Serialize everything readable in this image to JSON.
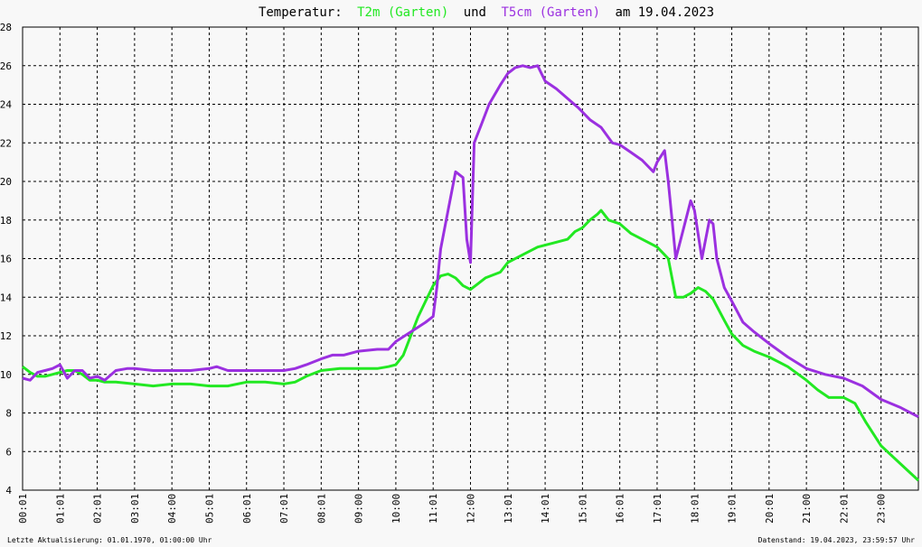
{
  "chart_data": {
    "type": "line",
    "title": {
      "prefix": "Temperatur:",
      "series1": "T2m (Garten)",
      "joiner": "und",
      "series2": "T5cm (Garten)",
      "suffix": "am 19.04.2023"
    },
    "xlabel": "",
    "ylabel": "",
    "ylim": [
      4,
      28
    ],
    "yticks": [
      4,
      6,
      8,
      10,
      12,
      14,
      16,
      18,
      20,
      22,
      24,
      26,
      28
    ],
    "xlim": [
      0,
      24
    ],
    "xticks": [
      0,
      1,
      2,
      3,
      4,
      5,
      6,
      7,
      8,
      9,
      10,
      11,
      12,
      13,
      14,
      15,
      16,
      17,
      18,
      19,
      20,
      21,
      22,
      23
    ],
    "xtick_labels": [
      "00:01",
      "01:01",
      "02:01",
      "03:01",
      "04:00",
      "05:01",
      "06:01",
      "07:01",
      "08:01",
      "09:00",
      "10:00",
      "11:01",
      "12:00",
      "13:01",
      "14:01",
      "15:01",
      "16:01",
      "17:01",
      "18:01",
      "19:01",
      "20:01",
      "21:00",
      "22:01",
      "23:00"
    ],
    "grid": true,
    "legend": "none",
    "colors": {
      "t2m": "#22e822",
      "t5cm": "#9b30e0",
      "background": "#f8f8f8",
      "grid": "#000000"
    },
    "series": [
      {
        "name": "T2m (Garten)",
        "x": [
          0,
          0.2,
          0.4,
          0.6,
          0.8,
          1.0,
          1.2,
          1.4,
          1.6,
          1.8,
          2.0,
          2.2,
          2.5,
          3.0,
          3.5,
          4.0,
          4.5,
          5.0,
          5.5,
          6.0,
          6.5,
          7.0,
          7.3,
          7.6,
          8.0,
          8.5,
          9.0,
          9.5,
          9.8,
          10.0,
          10.2,
          10.4,
          10.6,
          10.8,
          11.0,
          11.2,
          11.4,
          11.6,
          11.8,
          12.0,
          12.2,
          12.4,
          12.8,
          13.0,
          13.4,
          13.8,
          14.2,
          14.6,
          14.8,
          15.0,
          15.2,
          15.4,
          15.5,
          15.7,
          16.0,
          16.3,
          16.6,
          17.0,
          17.3,
          17.5,
          17.7,
          17.9,
          18.1,
          18.3,
          18.5,
          18.8,
          19.0,
          19.3,
          19.6,
          20.0,
          20.5,
          21.0,
          21.3,
          21.6,
          22.0,
          22.3,
          22.6,
          23.0,
          23.5,
          24.0
        ],
        "y": [
          10.4,
          10.1,
          9.9,
          9.9,
          10.0,
          10.1,
          10.2,
          10.2,
          10.0,
          9.7,
          9.7,
          9.6,
          9.6,
          9.5,
          9.4,
          9.5,
          9.5,
          9.4,
          9.4,
          9.6,
          9.6,
          9.5,
          9.6,
          9.9,
          10.2,
          10.3,
          10.3,
          10.3,
          10.4,
          10.5,
          11.0,
          12.0,
          13.0,
          13.8,
          14.6,
          15.1,
          15.2,
          15.0,
          14.6,
          14.4,
          14.7,
          15.0,
          15.3,
          15.8,
          16.2,
          16.6,
          16.8,
          17.0,
          17.4,
          17.6,
          18.0,
          18.3,
          18.5,
          18.0,
          17.8,
          17.3,
          17.0,
          16.6,
          16.0,
          14.0,
          14.0,
          14.2,
          14.5,
          14.3,
          13.9,
          12.8,
          12.1,
          11.5,
          11.2,
          10.9,
          10.4,
          9.7,
          9.2,
          8.8,
          8.8,
          8.5,
          7.5,
          6.3,
          5.4,
          4.5
        ]
      },
      {
        "name": "T5cm (Garten)",
        "x": [
          0,
          0.2,
          0.4,
          0.6,
          0.8,
          1.0,
          1.2,
          1.4,
          1.6,
          1.8,
          2.0,
          2.2,
          2.5,
          2.8,
          3.0,
          3.5,
          4.0,
          4.5,
          5.0,
          5.2,
          5.5,
          6.0,
          6.5,
          7.0,
          7.3,
          7.6,
          8.0,
          8.3,
          8.6,
          9.0,
          9.5,
          9.8,
          10.0,
          10.4,
          10.8,
          11.0,
          11.1,
          11.2,
          11.4,
          11.6,
          11.8,
          11.9,
          12.0,
          12.1,
          12.3,
          12.5,
          12.8,
          13.0,
          13.2,
          13.4,
          13.6,
          13.8,
          14.0,
          14.3,
          14.6,
          14.9,
          15.2,
          15.5,
          15.8,
          16.0,
          16.3,
          16.6,
          16.9,
          17.0,
          17.2,
          17.3,
          17.4,
          17.5,
          17.7,
          17.9,
          18.0,
          18.2,
          18.4,
          18.5,
          18.6,
          18.8,
          19.0,
          19.3,
          19.6,
          20.0,
          20.5,
          21.0,
          21.5,
          22.0,
          22.5,
          23.0,
          23.5,
          24.0
        ],
        "y": [
          9.8,
          9.7,
          10.1,
          10.2,
          10.3,
          10.5,
          9.8,
          10.2,
          10.2,
          9.8,
          9.9,
          9.7,
          10.2,
          10.3,
          10.3,
          10.2,
          10.2,
          10.2,
          10.3,
          10.4,
          10.2,
          10.2,
          10.2,
          10.2,
          10.3,
          10.5,
          10.8,
          11.0,
          11.0,
          11.2,
          11.3,
          11.3,
          11.7,
          12.2,
          12.7,
          13.0,
          14.5,
          16.5,
          18.5,
          20.5,
          20.2,
          17.0,
          15.8,
          22.0,
          23.0,
          24.0,
          25.0,
          25.6,
          25.9,
          26.0,
          25.9,
          26.0,
          25.2,
          24.8,
          24.3,
          23.8,
          23.2,
          22.8,
          22.0,
          21.9,
          21.5,
          21.1,
          20.5,
          21.0,
          21.6,
          20.0,
          18.0,
          16.0,
          17.5,
          19.0,
          18.5,
          16.0,
          18.0,
          17.8,
          16.0,
          14.5,
          13.8,
          12.7,
          12.2,
          11.6,
          10.9,
          10.3,
          10.0,
          9.8,
          9.4,
          8.7,
          8.3,
          7.8
        ]
      }
    ]
  },
  "footer": {
    "left": "Letzte Aktualisierung: 01.01.1970, 01:00:00 Uhr",
    "right": "Datenstand: 19.04.2023, 23:59:57 Uhr"
  }
}
